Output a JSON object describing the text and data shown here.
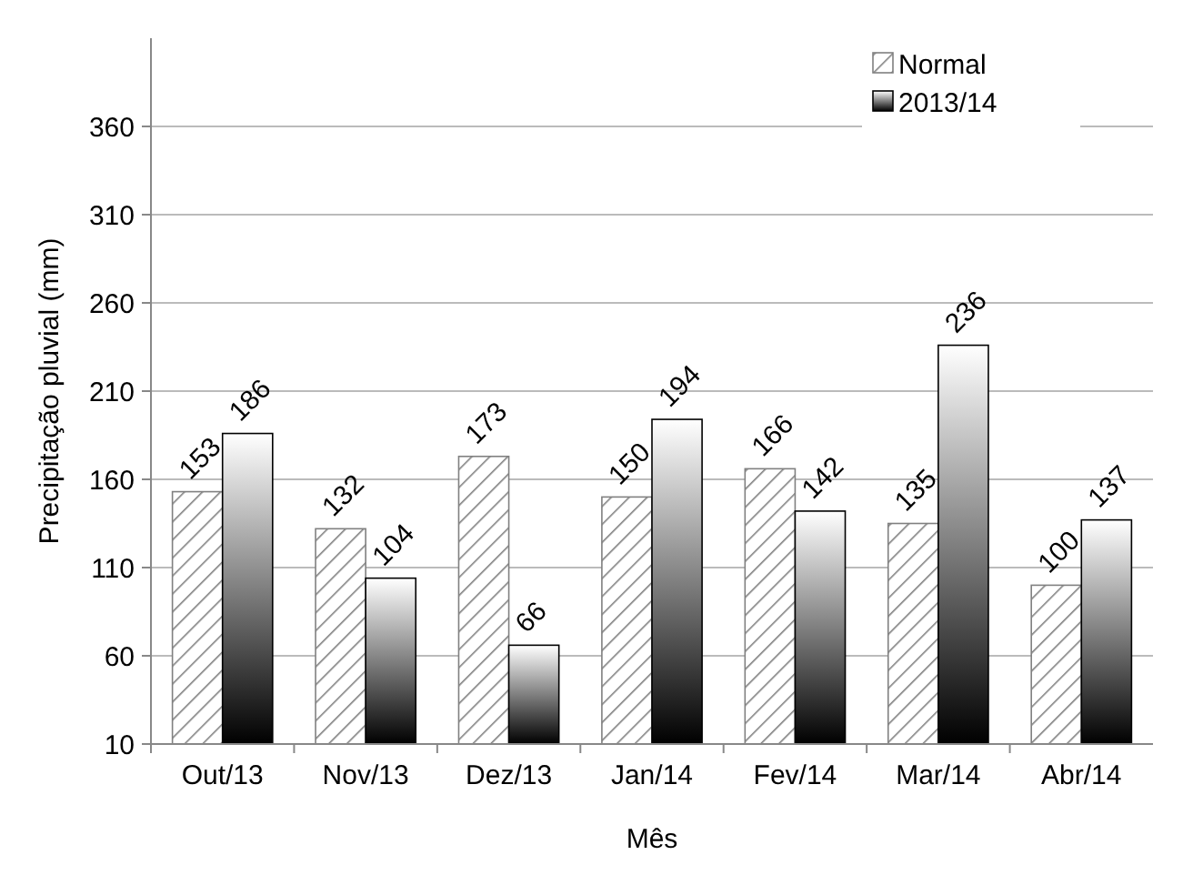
{
  "chart_data": {
    "type": "bar",
    "xlabel": "Mês",
    "ylabel": "Precipitação pluvial (mm)",
    "categories": [
      "Out/13",
      "Nov/13",
      "Dez/13",
      "Jan/14",
      "Fev/14",
      "Mar/14",
      "Abr/14"
    ],
    "series": [
      {
        "name": "Normal",
        "color": "#808080",
        "values": [
          153,
          132,
          173,
          150,
          166,
          135,
          100
        ]
      },
      {
        "name": "2013/14",
        "color": "#000000",
        "values": [
          186,
          104,
          66,
          194,
          142,
          236,
          137
        ]
      }
    ],
    "ylim": [
      10,
      410
    ],
    "yticks": [
      10,
      60,
      110,
      160,
      210,
      260,
      310,
      360
    ],
    "grid": "y",
    "legend": "top right",
    "data_labels": true
  }
}
